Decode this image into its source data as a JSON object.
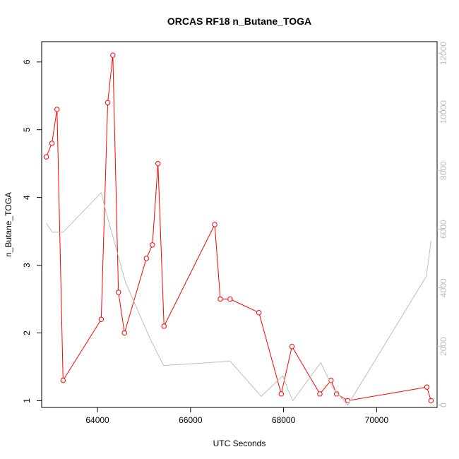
{
  "chart_data": {
    "type": "line",
    "title": "ORCAS RF18 n_Butane_TOGA",
    "xlabel": "UTC Seconds",
    "ylabel": "n_Butane_TOGA",
    "xlim": [
      62800,
      71300
    ],
    "ylim": [
      0.9,
      6.3
    ],
    "y2lim": [
      -80,
      12400
    ],
    "x_ticks": [
      64000,
      66000,
      68000,
      70000
    ],
    "y_ticks": [
      1,
      2,
      3,
      4,
      5,
      6
    ],
    "y2_ticks": [
      0,
      2000,
      4000,
      6000,
      8000,
      10000,
      12000
    ],
    "colors": {
      "primary": "#ff0000",
      "secondary": "#bebebe",
      "axis": "#000000",
      "right_axis": "#bdbdbd"
    },
    "series": [
      {
        "axis": "left",
        "marker": "open-circle",
        "color": "#ff0000",
        "x": [
          62900,
          63020,
          63130,
          63260,
          64080,
          64220,
          64330,
          64450,
          64580,
          65050,
          65180,
          65300,
          65430,
          66520,
          66640,
          66850,
          67470,
          67950,
          68180,
          68780,
          69020,
          69140,
          69380,
          71080,
          71170
        ],
        "y": [
          4.6,
          4.8,
          5.3,
          1.3,
          2.2,
          5.4,
          6.1,
          2.6,
          2.0,
          3.1,
          3.3,
          4.5,
          2.1,
          3.6,
          2.5,
          2.5,
          2.3,
          1.1,
          1.8,
          1.1,
          1.3,
          1.1,
          1.0,
          1.2,
          1.0
        ]
      },
      {
        "axis": "right",
        "marker": "none",
        "color": "#bebebe",
        "x": [
          62900,
          63030,
          63260,
          64080,
          64200,
          64600,
          65120,
          65420,
          66400,
          66850,
          67520,
          67980,
          68100,
          68200,
          68800,
          69050,
          69380,
          71070,
          71170
        ],
        "y": [
          6200,
          5900,
          5900,
          7250,
          6500,
          4200,
          2300,
          1350,
          1450,
          1500,
          300,
          1000,
          500,
          150,
          1450,
          600,
          0,
          4400,
          5600
        ]
      }
    ]
  }
}
